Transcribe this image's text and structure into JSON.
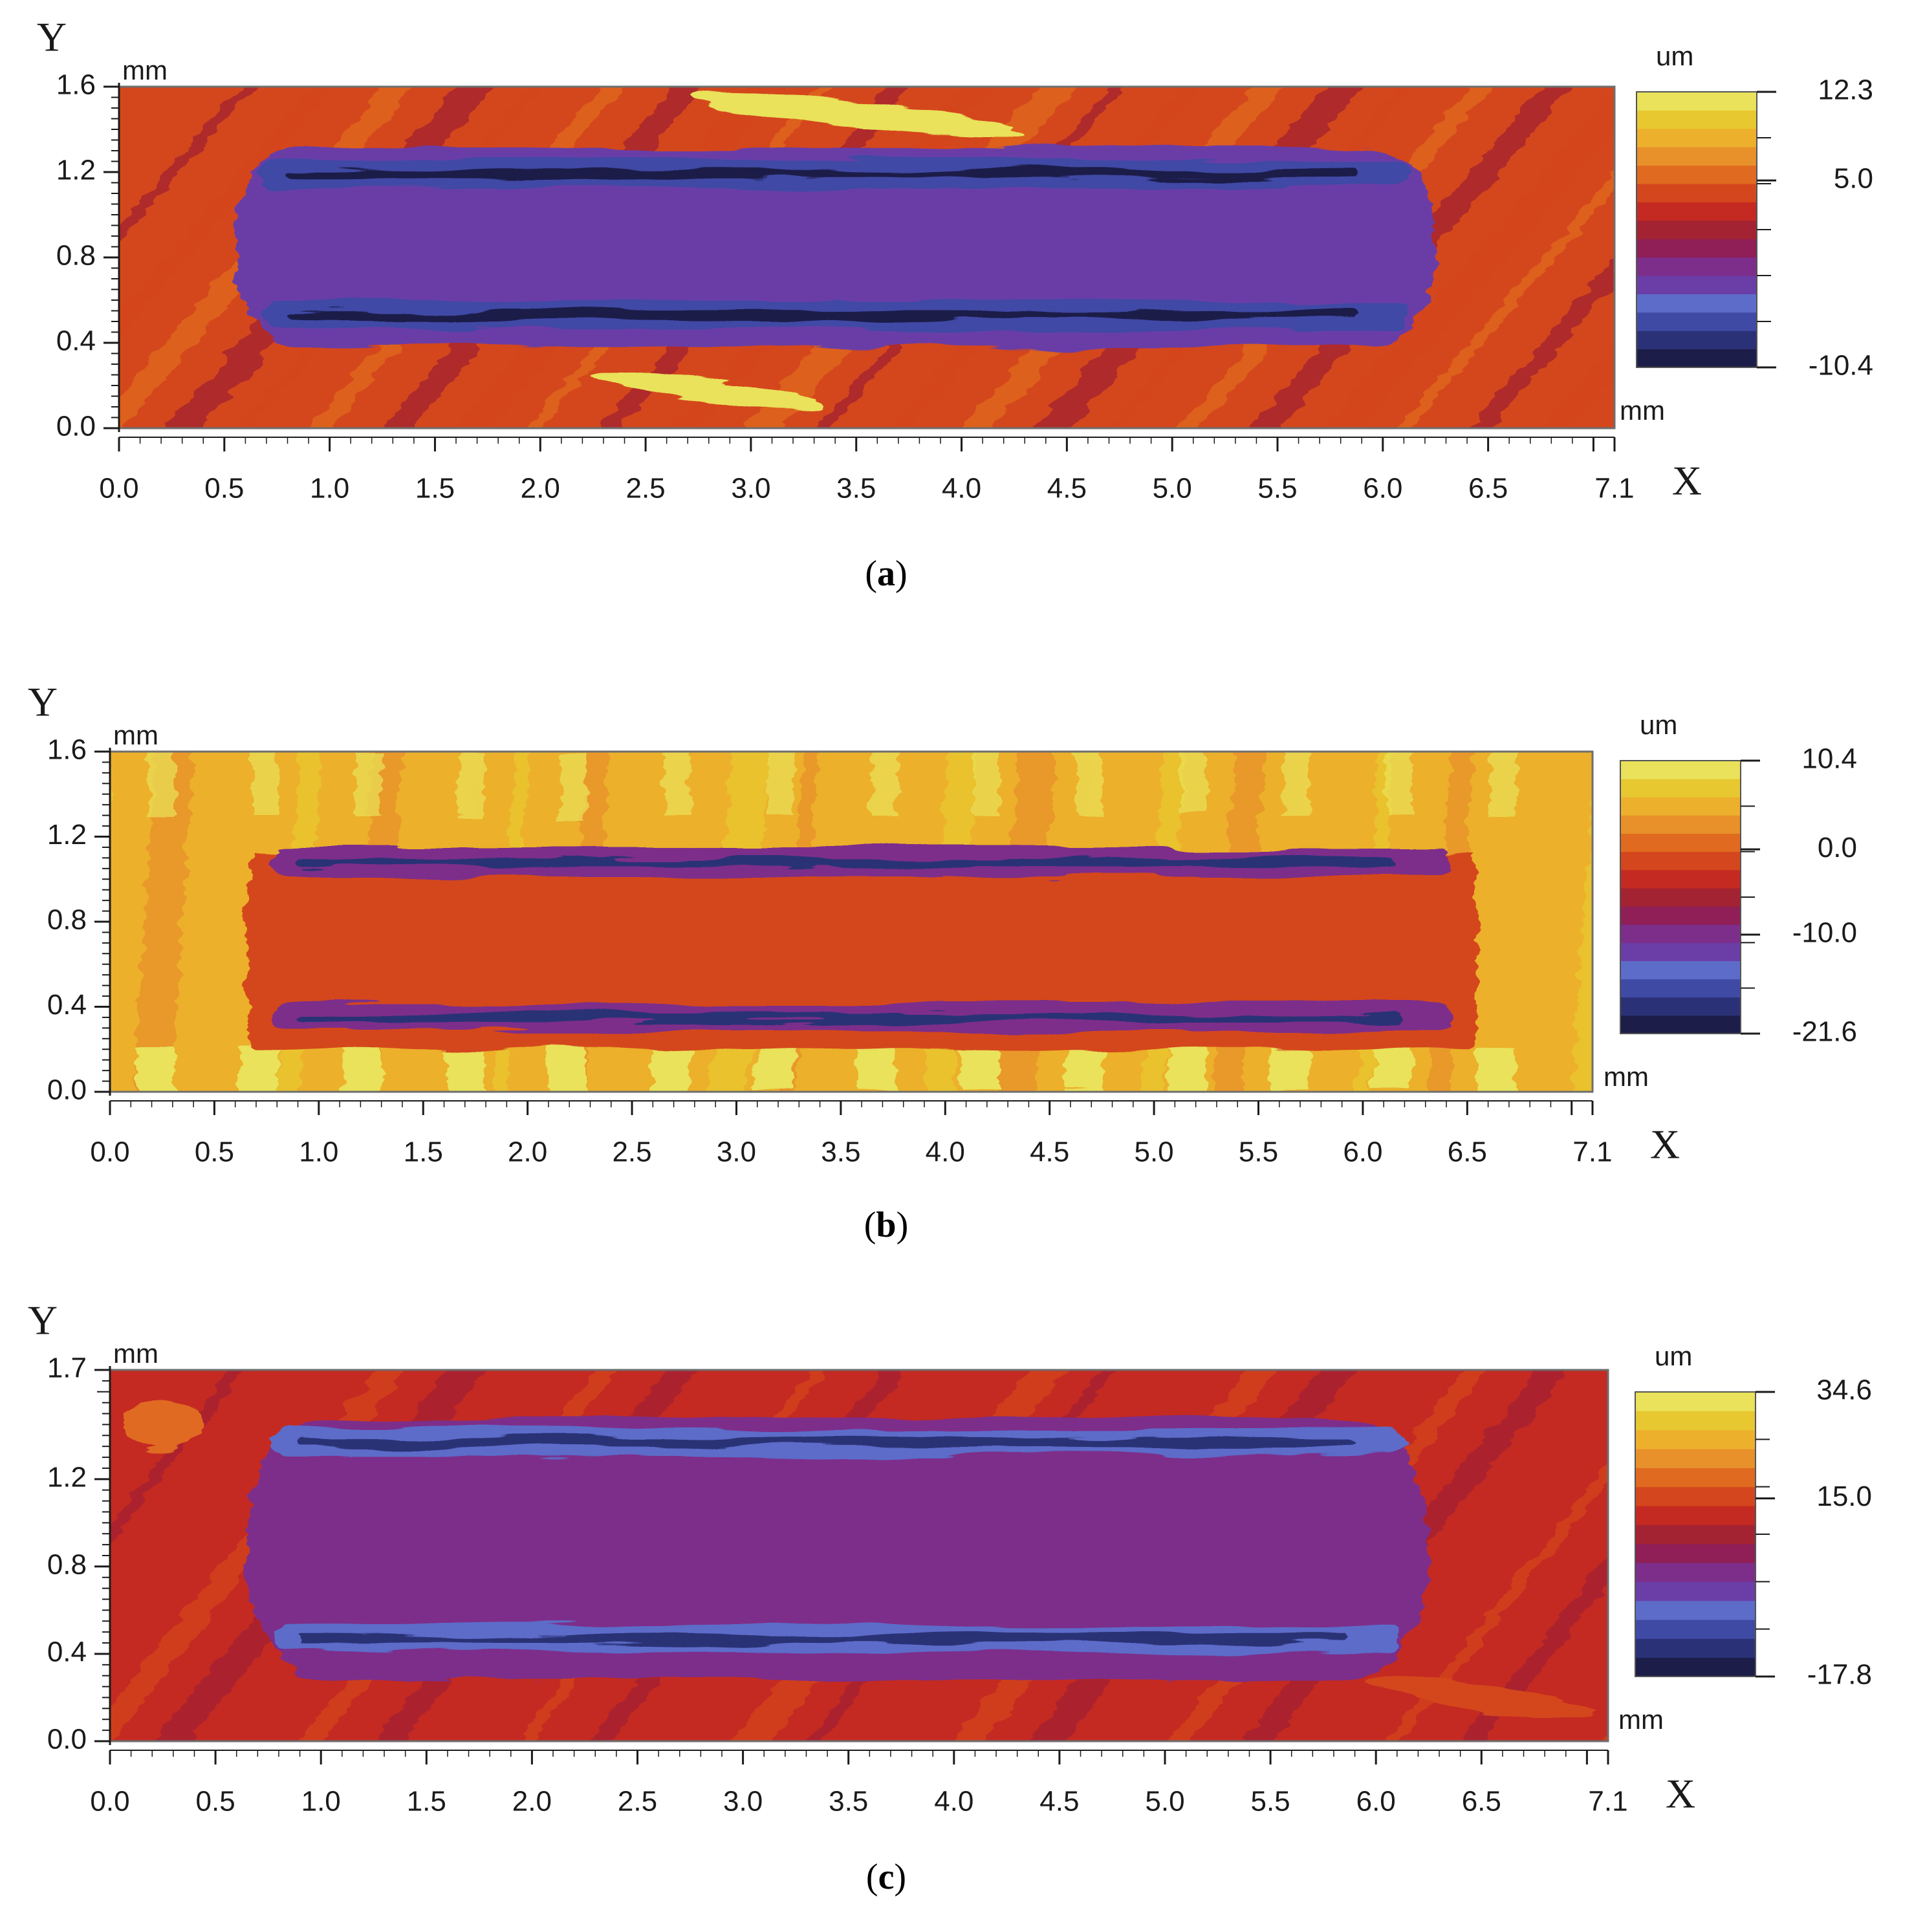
{
  "colors": {
    "scale": [
      "#1c1d48",
      "#2b3176",
      "#3f4aa5",
      "#5d6cc9",
      "#6a3ea6",
      "#7d2e8a",
      "#8f1f56",
      "#a32332",
      "#c42a22",
      "#d4461e",
      "#e06a20",
      "#e8902a",
      "#ecb02c",
      "#e8c830",
      "#e9e25a"
    ],
    "axis": "#1a1a1a",
    "frame": "#6e6e6e"
  },
  "chart_data": [
    {
      "type": "heatmap",
      "caption_letter": "a",
      "xlabel": "X",
      "ylabel": "Y",
      "x_unit": "mm",
      "y_unit": "mm",
      "colorbar_unit": "um",
      "colorbar_bottom_unit": "mm",
      "xlim": [
        0,
        7.1
      ],
      "ylim": [
        0,
        1.6
      ],
      "x_ticks": [
        "0.0",
        "0.5",
        "1.0",
        "1.5",
        "2.0",
        "2.5",
        "3.0",
        "3.5",
        "4.0",
        "4.5",
        "5.0",
        "5.5",
        "6.0",
        "6.5",
        "7.1"
      ],
      "y_ticks": [
        "0.0",
        "0.4",
        "0.8",
        "1.2",
        "1.6"
      ],
      "colorbar_range": [
        -10.4,
        12.3
      ],
      "colorbar_labels": [
        "12.3",
        "5.0",
        "-10.4"
      ],
      "colorbar_label_values": [
        12.3,
        5.0,
        -10.4
      ],
      "features": {
        "track": {
          "x": [
            0.55,
            6.25
          ],
          "y": [
            0.38,
            1.32
          ]
        },
        "upper_groove_y": 1.19,
        "lower_groove_y": 0.53,
        "surrounding_level_um": 3.5,
        "track_interior_level_um": -3.5,
        "groove_level_um": -9.5
      }
    },
    {
      "type": "heatmap",
      "caption_letter": "b",
      "xlabel": "X",
      "ylabel": "Y",
      "x_unit": "mm",
      "y_unit": "mm",
      "colorbar_unit": "um",
      "colorbar_bottom_unit": "mm",
      "xlim": [
        0,
        7.1
      ],
      "ylim": [
        0,
        1.6
      ],
      "x_ticks": [
        "0.0",
        "0.5",
        "1.0",
        "1.5",
        "2.0",
        "2.5",
        "3.0",
        "3.5",
        "4.0",
        "4.5",
        "5.0",
        "5.5",
        "6.0",
        "6.5",
        "7.1"
      ],
      "y_ticks": [
        "0.0",
        "0.4",
        "0.8",
        "1.2",
        "1.6"
      ],
      "colorbar_range": [
        -21.6,
        10.4
      ],
      "colorbar_labels": [
        "10.4",
        "0.0",
        "-10.0",
        "-21.6"
      ],
      "colorbar_label_values": [
        10.4,
        0.0,
        -10.0,
        -21.6
      ],
      "features": {
        "track": {
          "x": [
            0.65,
            6.55
          ],
          "y": [
            0.2,
            1.12
          ]
        },
        "upper_groove_y": 1.08,
        "lower_groove_y": 0.35,
        "surrounding_level_um": 5.0,
        "track_interior_level_um": -2.0,
        "groove_level_um": -18.0
      }
    },
    {
      "type": "heatmap",
      "caption_letter": "c",
      "xlabel": "X",
      "ylabel": "Y",
      "x_unit": "mm",
      "y_unit": "mm",
      "colorbar_unit": "um",
      "colorbar_bottom_unit": "mm",
      "xlim": [
        0,
        7.1
      ],
      "ylim": [
        0,
        1.7
      ],
      "x_ticks": [
        "0.0",
        "0.5",
        "1.0",
        "1.5",
        "2.0",
        "2.5",
        "3.0",
        "3.5",
        "4.0",
        "4.5",
        "5.0",
        "5.5",
        "6.0",
        "6.5",
        "7.1"
      ],
      "y_ticks": [
        "0.0",
        "0.4",
        "0.8",
        "1.2",
        "1.7"
      ],
      "colorbar_range": [
        -17.8,
        34.6
      ],
      "colorbar_labels": [
        "34.6",
        "15.0",
        "-17.8"
      ],
      "colorbar_label_values": [
        34.6,
        15.0,
        -17.8
      ],
      "features": {
        "track": {
          "x": [
            0.65,
            6.25
          ],
          "y": [
            0.28,
            1.48
          ]
        },
        "upper_groove_y": 1.37,
        "lower_groove_y": 0.47,
        "surrounding_level_um": 12.0,
        "track_interior_level_um": 0.0,
        "groove_level_um": -14.0
      }
    }
  ]
}
